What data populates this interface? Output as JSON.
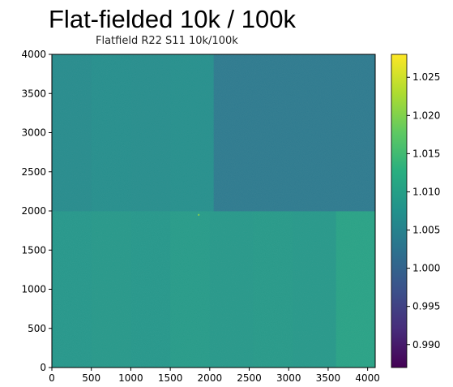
{
  "slide_title": "Flat-fielded 10k / 100k",
  "chart_data": {
    "type": "heatmap",
    "title": "Flatfield R22 S11 10k/100k",
    "xlabel": "",
    "ylabel": "",
    "xlim": [
      0,
      4096
    ],
    "ylim": [
      0,
      4000
    ],
    "x_ticks": [
      "0",
      "500",
      "1000",
      "1500",
      "2000",
      "2500",
      "3000",
      "3500",
      "4000"
    ],
    "y_ticks": [
      "0",
      "500",
      "1000",
      "1500",
      "2000",
      "2500",
      "3000",
      "3500",
      "4000"
    ],
    "colormap": "viridis",
    "color_range": [
      0.987,
      1.028
    ],
    "colorbar_ticks": [
      "0.990",
      "0.995",
      "1.000",
      "1.005",
      "1.010",
      "1.015",
      "1.020",
      "1.025"
    ],
    "regions": [
      {
        "x": [
          0,
          500
        ],
        "y": [
          0,
          2000
        ],
        "value": 1.0085
      },
      {
        "x": [
          500,
          1000
        ],
        "y": [
          0,
          2000
        ],
        "value": 1.0088
      },
      {
        "x": [
          1000,
          1500
        ],
        "y": [
          0,
          2000
        ],
        "value": 1.0085
      },
      {
        "x": [
          1500,
          2000
        ],
        "y": [
          0,
          2000
        ],
        "value": 1.0092
      },
      {
        "x": [
          2000,
          2550
        ],
        "y": [
          0,
          2000
        ],
        "value": 1.0088
      },
      {
        "x": [
          2550,
          3050
        ],
        "y": [
          0,
          2000
        ],
        "value": 1.009
      },
      {
        "x": [
          3050,
          3600
        ],
        "y": [
          0,
          2000
        ],
        "value": 1.0088
      },
      {
        "x": [
          3600,
          4096
        ],
        "y": [
          0,
          2000
        ],
        "value": 1.0105
      },
      {
        "x": [
          0,
          500
        ],
        "y": [
          2000,
          4000
        ],
        "value": 1.0065
      },
      {
        "x": [
          500,
          1000
        ],
        "y": [
          2000,
          4000
        ],
        "value": 1.007
      },
      {
        "x": [
          1000,
          1500
        ],
        "y": [
          2000,
          4000
        ],
        "value": 1.0068
      },
      {
        "x": [
          1500,
          2050
        ],
        "y": [
          2000,
          4000
        ],
        "value": 1.0072
      },
      {
        "x": [
          2050,
          4096
        ],
        "y": [
          2000,
          4000
        ],
        "value": 1.0035
      }
    ],
    "hot_pixel": {
      "x": 1860,
      "y": 1950,
      "value": 1.02
    }
  }
}
